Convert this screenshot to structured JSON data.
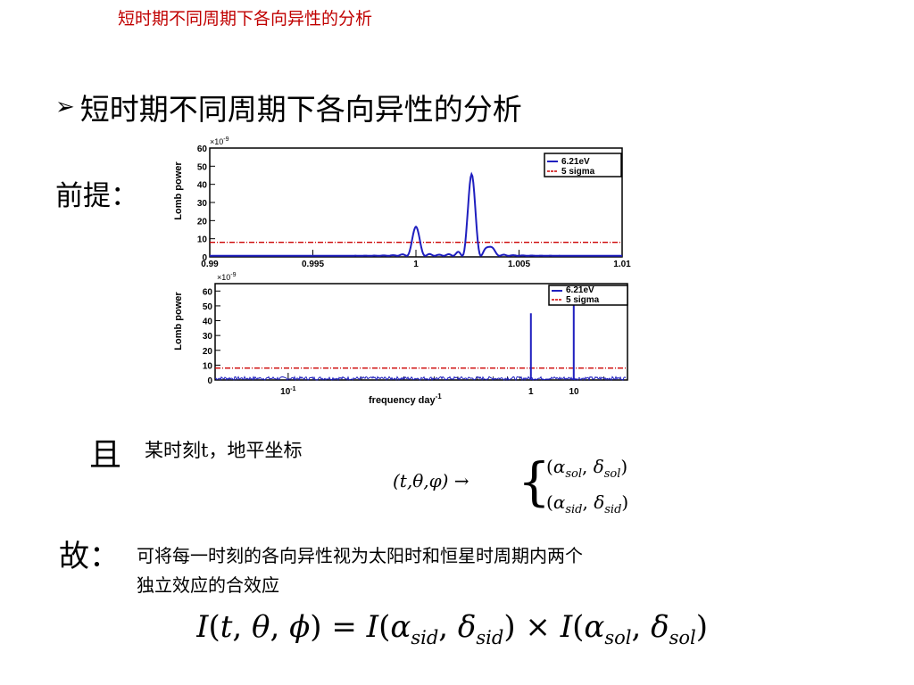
{
  "header": {
    "title": "短时期不同周期下各向异性的分析"
  },
  "section": {
    "title": "短时期不同周期下各向异性的分析"
  },
  "premise": {
    "label": "前提："
  },
  "charts": {
    "top": {
      "ylabel": "Lomb power",
      "exponent": "×10",
      "exponent_power": "-9",
      "yticks": [
        "0",
        "10",
        "20",
        "30",
        "40",
        "50",
        "60"
      ],
      "xticks": [
        "0.99",
        "0.995",
        "1",
        "1.005",
        "1.01"
      ],
      "legend": [
        "6.21eV",
        "5 sigma"
      ]
    },
    "bottom": {
      "ylabel": "Lomb power",
      "exponent": "×10",
      "exponent_power": "-9",
      "yticks": [
        "0",
        "10",
        "20",
        "30",
        "40",
        "50",
        "60"
      ],
      "xticks": [
        "10",
        "1",
        "10"
      ],
      "xtick_powers": [
        "-1",
        "",
        ""
      ],
      "xlabel": "frequency day",
      "xlabel_power": "-1",
      "legend": [
        "6.21eV",
        "5 sigma"
      ]
    }
  },
  "chart_data": [
    {
      "type": "line",
      "xlim": [
        0.99,
        1.01
      ],
      "ylim": [
        0,
        60
      ],
      "ylabel": "Lomb power",
      "series": [
        {
          "name": "6.21eV",
          "peaks": [
            {
              "x": 1.0,
              "y": 16
            },
            {
              "x": 1.0027,
              "y": 45
            },
            {
              "x": 1.0036,
              "y": 5
            }
          ]
        },
        {
          "name": "5 sigma",
          "values": [
            8
          ]
        }
      ],
      "legend": "top-right"
    },
    {
      "type": "line",
      "xscale": "log",
      "xlim": [
        0.05,
        2.5
      ],
      "ylim": [
        0,
        65
      ],
      "xlabel": "frequency day",
      "ylabel": "Lomb power",
      "series": [
        {
          "name": "6.21eV",
          "peaks": [
            {
              "x": 1.0,
              "y": 45
            },
            {
              "x": 1.0027,
              "y": 63
            }
          ]
        },
        {
          "name": "5 sigma",
          "values": [
            8
          ]
        }
      ],
      "legend": "top-right"
    }
  ],
  "condition": {
    "char": "且",
    "text": "某时刻t，地平坐标"
  },
  "conclusion": {
    "label": "故：",
    "line1": "可将每一时刻的各向异性视为太阳时和恒星时周期内两个",
    "line2": "独立效应的合效应"
  },
  "colors": {
    "header": "#c00000",
    "curve": "#1f1fbf",
    "threshold": "#cc0000",
    "accent": "#000000"
  }
}
